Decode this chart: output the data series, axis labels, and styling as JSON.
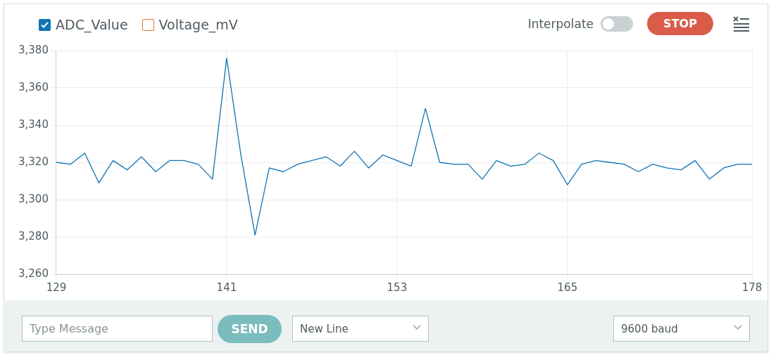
{
  "chart_data": {
    "type": "line",
    "x": [
      129,
      130,
      131,
      132,
      133,
      134,
      135,
      136,
      137,
      138,
      139,
      140,
      141,
      142,
      143,
      144,
      145,
      146,
      147,
      148,
      149,
      150,
      151,
      152,
      153,
      154,
      155,
      156,
      157,
      158,
      159,
      160,
      161,
      162,
      163,
      164,
      165,
      166,
      167,
      168,
      169,
      170,
      171,
      172,
      173,
      174,
      175,
      176,
      177,
      178
    ],
    "series": [
      {
        "name": "ADC_Value",
        "color": "#0f74b5",
        "values": [
          3320,
          3319,
          3325,
          3309,
          3321,
          3316,
          3323,
          3315,
          3321,
          3321,
          3319,
          3311,
          3376,
          3324,
          3281,
          3317,
          3315,
          3319,
          3321,
          3323,
          3318,
          3326,
          3317,
          3324,
          3321,
          3318,
          3349,
          3320,
          3319,
          3319,
          3311,
          3321,
          3318,
          3319,
          3325,
          3321,
          3308,
          3319,
          3321,
          3320,
          3319,
          3315,
          3319,
          3317,
          3316,
          3321,
          3311,
          3317,
          3319,
          3319
        ]
      },
      {
        "name": "Voltage_mV",
        "color": "#d9783a",
        "values": [
          null,
          null,
          null,
          null,
          null,
          null,
          null,
          null,
          null,
          null,
          null,
          null,
          null,
          null,
          null,
          null,
          null,
          null,
          null,
          null,
          null,
          null,
          null,
          null,
          null,
          null,
          null,
          null,
          null,
          null,
          null,
          null,
          null,
          null,
          null,
          null,
          null,
          null,
          null,
          null,
          null,
          null,
          null,
          null,
          null,
          null,
          null,
          null,
          null,
          null
        ]
      }
    ],
    "xlim": [
      129,
      178
    ],
    "xticks": [
      129,
      141,
      153,
      165,
      178
    ],
    "ylim": [
      3260,
      3380
    ],
    "yticks": [
      {
        "value": 3260,
        "label": "3,260"
      },
      {
        "value": 3280,
        "label": "3,280"
      },
      {
        "value": 3300,
        "label": "3,300"
      },
      {
        "value": 3320,
        "label": "3,320"
      },
      {
        "value": 3340,
        "label": "3,340"
      },
      {
        "value": 3360,
        "label": "3,360"
      },
      {
        "value": 3380,
        "label": "3,380"
      }
    ],
    "grid": true,
    "legend": "top left",
    "marker": "none",
    "line_style": "solid",
    "annotations": [
      "Interpolate",
      "STOP",
      "Type Message",
      "SEND",
      "New Line",
      "9600 baud"
    ]
  }
}
